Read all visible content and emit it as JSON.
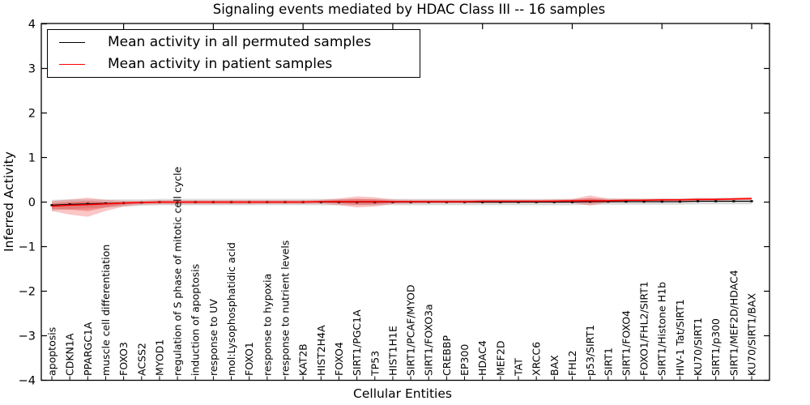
{
  "chart_data": {
    "type": "line",
    "title": "Signaling events mediated by HDAC Class III -- 16 samples",
    "xlabel": "Cellular Entities",
    "ylabel": "Inferred Activity",
    "ylim": [
      -4,
      4
    ],
    "grid": false,
    "legend_position": "upper left",
    "x_tick_label_rotation": 90,
    "yticks": [
      {
        "label": "4",
        "value": 4
      },
      {
        "label": "3",
        "value": 3
      },
      {
        "label": "2",
        "value": 2
      },
      {
        "label": "1",
        "value": 1
      },
      {
        "label": "0",
        "value": 0
      },
      {
        "label": "−1",
        "value": -1
      },
      {
        "label": "−2",
        "value": -2
      },
      {
        "label": "−3",
        "value": -3
      },
      {
        "label": "−4",
        "value": -4
      }
    ],
    "categories": [
      "apoptosis",
      "CDKN1A",
      "PPARGC1A",
      "muscle cell differentiation",
      "FOXO3",
      "ACSS2",
      "MYOD1",
      "regulation of S phase of mitotic cell cycle",
      "induction of apoptosis",
      "response to UV",
      "mol:Lysophosphatidic acid",
      "FOXO1",
      "response to hypoxia",
      "response to nutrient levels",
      "KAT2B",
      "HIST2H4A",
      "FOXO4",
      "SIRT1/PGC1A",
      "TP53",
      "HIST1H1E",
      "SIRT1/PCAF/MYOD",
      "SIRT1/FOXO3a",
      "CREBBP",
      "EP300",
      "HDAC4",
      "MEF2D",
      "TAT",
      "XRCC6",
      "BAX",
      "FHL2",
      "p53/SIRT1",
      "SIRT1",
      "SIRT1/FOXO4",
      "FOXO1/FHL2/SIRT1",
      "SIRT1/Histone H1b",
      "HIV-1 Tat/SIRT1",
      "KU70/SIRT1",
      "SIRT1/p300",
      "SIRT1/MEF2D/HDAC4",
      "KU70/SIRT1/BAX"
    ],
    "series": [
      {
        "name": "Mean activity in all permuted samples",
        "color": "#000000",
        "marker": "square",
        "values": [
          -0.07,
          -0.05,
          -0.04,
          -0.03,
          -0.02,
          -0.01,
          0,
          0,
          0,
          0,
          0,
          0,
          0,
          0,
          0,
          0,
          0,
          0,
          0,
          0,
          0,
          0,
          0,
          0,
          0,
          0,
          0,
          0,
          0,
          0,
          0.01,
          0.01,
          0.01,
          0.01,
          0.01,
          0.01,
          0.02,
          0.02,
          0.02,
          0.02
        ]
      },
      {
        "name": "Mean activity in patient samples",
        "color": "#ff0000",
        "marker": "none",
        "values": [
          -0.09,
          -0.07,
          -0.06,
          -0.04,
          -0.02,
          -0.01,
          0,
          0,
          0,
          0,
          0,
          0,
          0,
          0,
          0,
          0.01,
          0.01,
          0.01,
          0.01,
          0.01,
          0.01,
          0.01,
          0.01,
          0.01,
          0.02,
          0.02,
          0.02,
          0.02,
          0.02,
          0.03,
          0.03,
          0.03,
          0.04,
          0.04,
          0.05,
          0.05,
          0.06,
          0.06,
          0.07,
          0.08
        ]
      }
    ],
    "bands": [
      {
        "name": "permuted-samples-range",
        "color": "#bbbbbb",
        "opacity": 0.55,
        "upper": [
          0.05,
          0.06,
          0.06,
          0.06,
          0.06,
          0.06,
          0.07,
          0.07,
          0.07,
          0.07,
          0.07,
          0.07,
          0.07,
          0.07,
          0.07,
          0.07,
          0.07,
          0.07,
          0.07,
          0.07,
          0.07,
          0.07,
          0.07,
          0.07,
          0.07,
          0.07,
          0.07,
          0.07,
          0.07,
          0.07,
          0.08,
          0.08,
          0.08,
          0.08,
          0.08,
          0.08,
          0.09,
          0.09,
          0.09,
          0.09
        ],
        "lower": [
          -0.19,
          -0.16,
          -0.14,
          -0.12,
          -0.1,
          -0.08,
          -0.07,
          -0.07,
          -0.07,
          -0.07,
          -0.07,
          -0.07,
          -0.07,
          -0.07,
          -0.07,
          -0.07,
          -0.07,
          -0.07,
          -0.07,
          -0.07,
          -0.07,
          -0.07,
          -0.07,
          -0.07,
          -0.07,
          -0.07,
          -0.07,
          -0.07,
          -0.07,
          -0.07,
          -0.06,
          -0.06,
          -0.06,
          -0.06,
          -0.06,
          -0.06,
          -0.05,
          -0.05,
          -0.05,
          -0.05
        ]
      },
      {
        "name": "patient-samples-outer-range",
        "color": "#ee3333",
        "opacity": 0.28,
        "upper": [
          0.02,
          0.06,
          0.1,
          0.05,
          0.03,
          0.03,
          0.04,
          0.04,
          0.04,
          0.04,
          0.04,
          0.04,
          0.04,
          0.04,
          0.04,
          0.05,
          0.08,
          0.13,
          0.11,
          0.06,
          0.05,
          0.05,
          0.05,
          0.05,
          0.05,
          0.05,
          0.05,
          0.05,
          0.06,
          0.07,
          0.15,
          0.08,
          0.07,
          0.07,
          0.08,
          0.08,
          0.09,
          0.09,
          0.1,
          0.11
        ],
        "lower": [
          -0.2,
          -0.28,
          -0.33,
          -0.2,
          -0.1,
          -0.06,
          -0.05,
          -0.05,
          -0.05,
          -0.05,
          -0.05,
          -0.05,
          -0.04,
          -0.04,
          -0.04,
          -0.04,
          -0.07,
          -0.12,
          -0.1,
          -0.04,
          -0.04,
          -0.03,
          -0.03,
          -0.03,
          -0.03,
          -0.03,
          -0.02,
          -0.02,
          -0.02,
          -0.02,
          -0.08,
          -0.01,
          0.0,
          0.01,
          0.01,
          0.02,
          0.02,
          0.03,
          0.04,
          0.05
        ]
      },
      {
        "name": "patient-samples-inner-range",
        "color": "#ee2222",
        "opacity": 0.35,
        "upper": [
          -0.03,
          0.0,
          0.02,
          0.0,
          0.0,
          0.01,
          0.02,
          0.02,
          0.02,
          0.02,
          0.02,
          0.02,
          0.02,
          0.02,
          0.02,
          0.03,
          0.05,
          0.07,
          0.06,
          0.03,
          0.03,
          0.03,
          0.03,
          0.03,
          0.03,
          0.03,
          0.03,
          0.03,
          0.04,
          0.05,
          0.09,
          0.05,
          0.05,
          0.06,
          0.06,
          0.06,
          0.07,
          0.08,
          0.08,
          0.09
        ],
        "lower": [
          -0.15,
          -0.17,
          -0.2,
          -0.12,
          -0.06,
          -0.03,
          -0.02,
          -0.02,
          -0.02,
          -0.02,
          -0.02,
          -0.02,
          -0.02,
          -0.02,
          -0.02,
          -0.01,
          -0.03,
          -0.06,
          -0.05,
          -0.02,
          -0.01,
          -0.01,
          -0.01,
          -0.01,
          -0.01,
          -0.01,
          0.0,
          0.0,
          0.0,
          0.01,
          -0.02,
          0.01,
          0.02,
          0.03,
          0.03,
          0.04,
          0.04,
          0.05,
          0.05,
          0.06
        ]
      }
    ]
  }
}
